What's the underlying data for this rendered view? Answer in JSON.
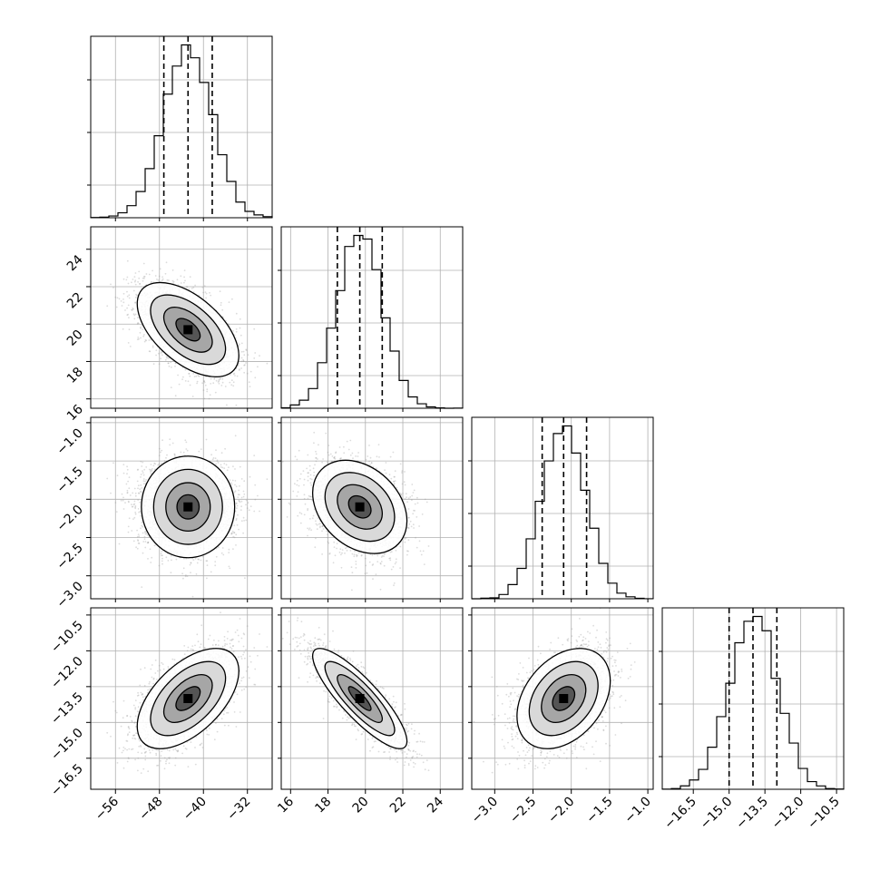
{
  "chart_data": {
    "type": "corner",
    "grid": true,
    "n_params": 4,
    "params": [
      {
        "median": -42.8,
        "q16": -47.2,
        "q84": -38.4,
        "sigma": 4.4,
        "range": [
          -60.5,
          -27.5
        ],
        "tick_values": [
          -56,
          -48,
          -40,
          -32
        ],
        "tick_labels": [
          "−56",
          "−48",
          "−40",
          "−32"
        ]
      },
      {
        "median": 19.7,
        "q16": 18.5,
        "q84": 20.9,
        "sigma": 1.2,
        "range": [
          15.5,
          25.2
        ],
        "tick_values": [
          16,
          18,
          20,
          22,
          24
        ],
        "tick_labels": [
          "16",
          "18",
          "20",
          "22",
          "24"
        ]
      },
      {
        "median": -2.1,
        "q16": -2.38,
        "q84": -1.8,
        "sigma": 0.29,
        "range": [
          -3.3,
          -0.93
        ],
        "tick_values": [
          -3.0,
          -2.5,
          -2.0,
          -1.5,
          -1.0
        ],
        "tick_labels": [
          "−3.0",
          "−2.5",
          "−2.0",
          "−1.5",
          "−1.0"
        ]
      },
      {
        "median": -14.0,
        "q16": -15.0,
        "q84": -13.0,
        "sigma": 1.0,
        "range": [
          -17.8,
          -10.2
        ],
        "tick_values": [
          -16.5,
          -15.0,
          -13.5,
          -12.0,
          -10.5
        ],
        "tick_labels": [
          "−16.5",
          "−15.0",
          "−13.5",
          "−12.0",
          "−10.5"
        ]
      }
    ],
    "correlations": [
      {
        "pair": [
          0,
          1
        ],
        "rho": -0.55
      },
      {
        "pair": [
          0,
          2
        ],
        "rho": 0.0
      },
      {
        "pair": [
          0,
          3
        ],
        "rho": 0.55
      },
      {
        "pair": [
          1,
          2
        ],
        "rho": -0.3
      },
      {
        "pair": [
          1,
          3
        ],
        "rho": -0.85
      },
      {
        "pair": [
          2,
          3
        ],
        "rho": 0.35
      }
    ],
    "histogram_bins": 20,
    "quantile_lines": [
      "q16",
      "median",
      "q84"
    ]
  }
}
